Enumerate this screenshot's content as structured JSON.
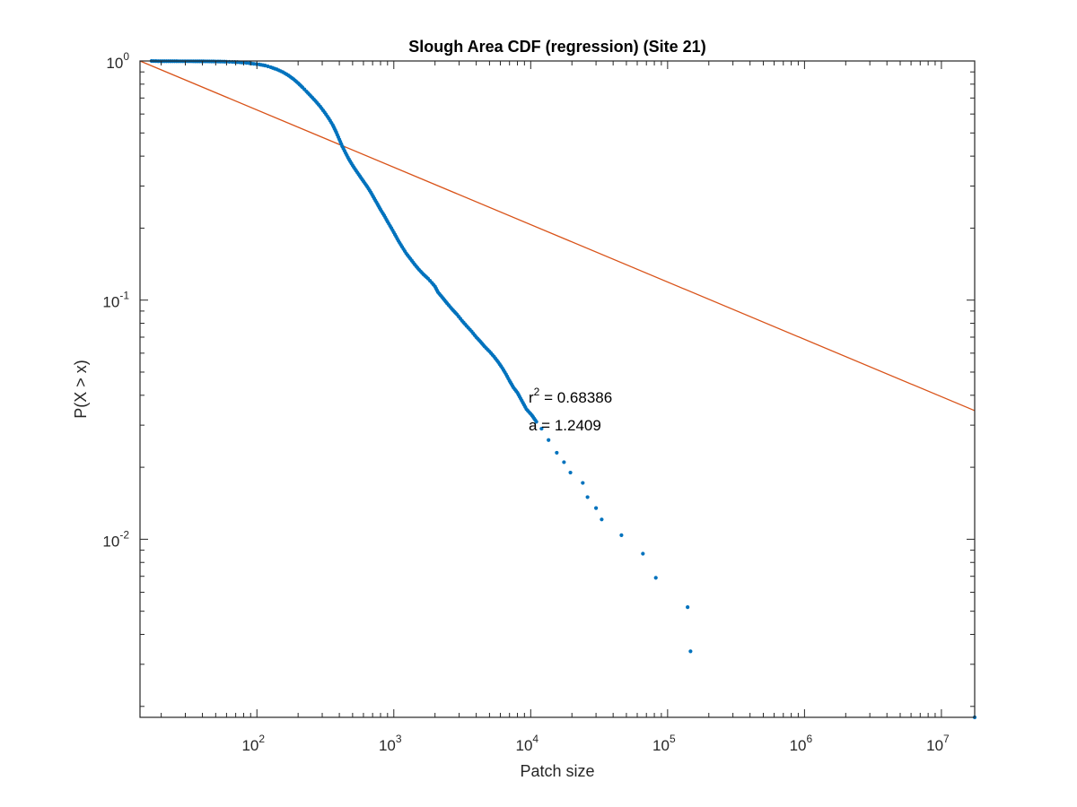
{
  "chart_data": {
    "type": "scatter",
    "title": "Slough Area CDF (regression) (Site 21)",
    "xlabel": "Patch size",
    "ylabel": "P(X > x)",
    "xscale": "log",
    "yscale": "log",
    "xlim": [
      14,
      17500000
    ],
    "ylim": [
      0.0018,
      1
    ],
    "x_ticks": [
      {
        "base": "10",
        "exp": "2",
        "value": 100
      },
      {
        "base": "10",
        "exp": "3",
        "value": 1000
      },
      {
        "base": "10",
        "exp": "4",
        "value": 10000
      },
      {
        "base": "10",
        "exp": "5",
        "value": 100000
      },
      {
        "base": "10",
        "exp": "6",
        "value": 1000000
      },
      {
        "base": "10",
        "exp": "7",
        "value": 10000000
      }
    ],
    "y_ticks": [
      {
        "base": "10",
        "exp": "0",
        "value": 1
      },
      {
        "base": "10",
        "exp": "-1",
        "value": 0.1
      },
      {
        "base": "10",
        "exp": "-2",
        "value": 0.01
      }
    ],
    "grid": false,
    "legend": "none",
    "colors": {
      "scatter": "#0072BD",
      "fit": "#D95319",
      "axes": "#262626"
    },
    "series": [
      {
        "type": "scatter",
        "points": [
          [
            17,
            1.0
          ],
          [
            19,
            0.998
          ],
          [
            38,
            0.997
          ],
          [
            45,
            0.996
          ],
          [
            52,
            0.995
          ],
          [
            60,
            0.993
          ],
          [
            66,
            0.991
          ],
          [
            72,
            0.989
          ],
          [
            80,
            0.985
          ],
          [
            88,
            0.979
          ],
          [
            95,
            0.973
          ],
          [
            104,
            0.967
          ],
          [
            115,
            0.957
          ],
          [
            126,
            0.942
          ],
          [
            140,
            0.922
          ],
          [
            155,
            0.898
          ],
          [
            170,
            0.87
          ],
          [
            185,
            0.84
          ],
          [
            200,
            0.808
          ],
          [
            215,
            0.776
          ],
          [
            230,
            0.746
          ],
          [
            248,
            0.713
          ],
          [
            268,
            0.68
          ],
          [
            290,
            0.645
          ],
          [
            312,
            0.61
          ],
          [
            335,
            0.575
          ],
          [
            358,
            0.54
          ],
          [
            380,
            0.503
          ],
          [
            400,
            0.47
          ],
          [
            420,
            0.44
          ],
          [
            445,
            0.412
          ],
          [
            470,
            0.388
          ],
          [
            500,
            0.366
          ],
          [
            530,
            0.348
          ],
          [
            565,
            0.33
          ],
          [
            600,
            0.314
          ],
          [
            640,
            0.298
          ],
          [
            680,
            0.282
          ],
          [
            720,
            0.266
          ],
          [
            760,
            0.252
          ],
          [
            800,
            0.239
          ],
          [
            850,
            0.226
          ],
          [
            900,
            0.213
          ],
          [
            960,
            0.2
          ],
          [
            1020,
            0.188
          ],
          [
            1080,
            0.177
          ],
          [
            1150,
            0.167
          ],
          [
            1230,
            0.157
          ],
          [
            1320,
            0.149
          ],
          [
            1420,
            0.141
          ],
          [
            1530,
            0.134
          ],
          [
            1650,
            0.128
          ],
          [
            1780,
            0.123
          ],
          [
            1900,
            0.118
          ],
          [
            2000,
            0.114
          ],
          [
            2100,
            0.108
          ],
          [
            2250,
            0.103
          ],
          [
            2450,
            0.097
          ],
          [
            2650,
            0.092
          ],
          [
            2900,
            0.087
          ],
          [
            3150,
            0.082
          ],
          [
            3400,
            0.078
          ],
          [
            3700,
            0.074
          ],
          [
            4000,
            0.07
          ],
          [
            4300,
            0.067
          ],
          [
            4600,
            0.064
          ],
          [
            5000,
            0.061
          ],
          [
            5400,
            0.058
          ],
          [
            5800,
            0.055
          ],
          [
            6200,
            0.052
          ],
          [
            6600,
            0.049
          ],
          [
            7000,
            0.046
          ],
          [
            7500,
            0.043
          ],
          [
            8000,
            0.041
          ],
          [
            8600,
            0.038
          ],
          [
            9300,
            0.035
          ],
          [
            10200,
            0.033
          ],
          [
            11000,
            0.031
          ],
          [
            12000,
            0.029
          ],
          [
            13500,
            0.026
          ],
          [
            15500,
            0.023
          ],
          [
            17500,
            0.021
          ],
          [
            19500,
            0.019
          ],
          [
            24000,
            0.0172
          ],
          [
            26000,
            0.015
          ],
          [
            30000,
            0.0135
          ],
          [
            33000,
            0.0121
          ],
          [
            46000,
            0.0104
          ],
          [
            66000,
            0.0087
          ],
          [
            82000,
            0.0069
          ],
          [
            140000,
            0.0052
          ],
          [
            147000,
            0.0034
          ],
          [
            17500000,
            0.0018
          ]
        ]
      },
      {
        "type": "line",
        "x": [
          14,
          17500000
        ],
        "y": [
          1.0,
          0.0345
        ]
      }
    ],
    "annotations": {
      "r2_prefix": "r",
      "r2_exp": "2",
      "r2_value": " = 0.68386",
      "a_text": "a = 1.2409"
    }
  }
}
